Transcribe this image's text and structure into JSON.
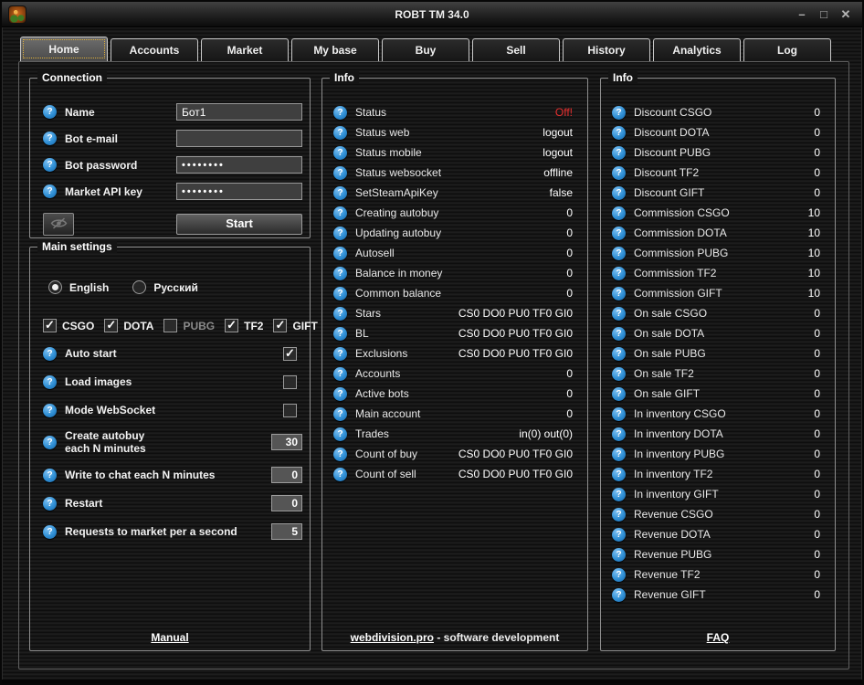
{
  "window": {
    "title": "ROBT TM 34.0",
    "controls": {
      "minimize": "–",
      "maximize": "□",
      "close": "✕"
    }
  },
  "tabs": [
    {
      "label": "Home",
      "active": true
    },
    {
      "label": "Accounts",
      "active": false
    },
    {
      "label": "Market",
      "active": false
    },
    {
      "label": "My base",
      "active": false
    },
    {
      "label": "Buy",
      "active": false
    },
    {
      "label": "Sell",
      "active": false
    },
    {
      "label": "History",
      "active": false
    },
    {
      "label": "Analytics",
      "active": false
    },
    {
      "label": "Log",
      "active": false
    }
  ],
  "connection": {
    "title": "Connection",
    "fields": [
      {
        "label": "Name",
        "value": "Бот1",
        "type": "text"
      },
      {
        "label": "Bot e-mail",
        "value": "",
        "type": "text"
      },
      {
        "label": "Bot password",
        "value": "••••••••",
        "type": "password"
      },
      {
        "label": "Market API key",
        "value": "••••••••",
        "type": "password"
      }
    ],
    "show_password_icon": "eye-off-icon",
    "start_button": "Start"
  },
  "settings": {
    "title": "Main settings",
    "languages": [
      {
        "label": "English",
        "selected": true
      },
      {
        "label": "Русский",
        "selected": false
      }
    ],
    "games": [
      {
        "label": "CSGO",
        "checked": true
      },
      {
        "label": "DOTA",
        "checked": true
      },
      {
        "label": "PUBG",
        "checked": false
      },
      {
        "label": "TF2",
        "checked": true
      },
      {
        "label": "GIFT",
        "checked": true
      }
    ],
    "toggles": [
      {
        "label": "Auto start",
        "checked": true
      },
      {
        "label": "Load images",
        "checked": false
      },
      {
        "label": "Mode WebSocket",
        "checked": false
      }
    ],
    "numbers": [
      {
        "label": "Create autobuy each N minutes",
        "lines": [
          "Create autobuy",
          "each N minutes"
        ],
        "value": "30"
      },
      {
        "label": "Write to chat each N minutes",
        "value": "0"
      },
      {
        "label": "Restart",
        "value": "0"
      },
      {
        "label": "Requests to market per a second",
        "value": "5"
      }
    ]
  },
  "info_center": {
    "title": "Info",
    "rows": [
      {
        "label": "Status",
        "value": "Off!",
        "highlight": "red"
      },
      {
        "label": "Status web",
        "value": "logout"
      },
      {
        "label": "Status mobile",
        "value": "logout"
      },
      {
        "label": "Status websocket",
        "value": "offline"
      },
      {
        "label": "SetSteamApiKey",
        "value": "false"
      },
      {
        "label": "Creating autobuy",
        "value": "0"
      },
      {
        "label": "Updating autobuy",
        "value": "0"
      },
      {
        "label": "Autosell",
        "value": "0"
      },
      {
        "label": "Balance in money",
        "value": "0"
      },
      {
        "label": "Common balance",
        "value": "0"
      },
      {
        "label": "Stars",
        "value": "CS0 DO0 PU0 TF0 GI0"
      },
      {
        "label": "BL",
        "value": "CS0 DO0 PU0 TF0 GI0"
      },
      {
        "label": "Exclusions",
        "value": "CS0 DO0 PU0 TF0 GI0"
      },
      {
        "label": "Accounts",
        "value": "0"
      },
      {
        "label": "Active bots",
        "value": "0"
      },
      {
        "label": "Main account",
        "value": "0"
      },
      {
        "label": "Trades",
        "value": "in(0) out(0)"
      },
      {
        "label": "Count of buy",
        "value": "CS0 DO0 PU0 TF0 GI0"
      },
      {
        "label": "Count of sell",
        "value": "CS0 DO0 PU0 TF0 GI0"
      }
    ]
  },
  "info_right": {
    "title": "Info",
    "rows": [
      {
        "label": "Discount CSGO",
        "value": "0"
      },
      {
        "label": "Discount DOTA",
        "value": "0"
      },
      {
        "label": "Discount PUBG",
        "value": "0"
      },
      {
        "label": "Discount TF2",
        "value": "0"
      },
      {
        "label": "Discount GIFT",
        "value": "0"
      },
      {
        "label": "Commission CSGO",
        "value": "10"
      },
      {
        "label": "Commission DOTA",
        "value": "10"
      },
      {
        "label": "Commission PUBG",
        "value": "10"
      },
      {
        "label": "Commission TF2",
        "value": "10"
      },
      {
        "label": "Commission GIFT",
        "value": "10"
      },
      {
        "label": "On sale CSGO",
        "value": "0"
      },
      {
        "label": "On sale DOTA",
        "value": "0"
      },
      {
        "label": "On sale PUBG",
        "value": "0"
      },
      {
        "label": "On sale TF2",
        "value": "0"
      },
      {
        "label": "On sale GIFT",
        "value": "0"
      },
      {
        "label": "In inventory CSGO",
        "value": "0"
      },
      {
        "label": "In inventory DOTA",
        "value": "0"
      },
      {
        "label": "In inventory PUBG",
        "value": "0"
      },
      {
        "label": "In inventory TF2",
        "value": "0"
      },
      {
        "label": "In inventory GIFT",
        "value": "0"
      },
      {
        "label": "Revenue CSGO",
        "value": "0"
      },
      {
        "label": "Revenue DOTA",
        "value": "0"
      },
      {
        "label": "Revenue PUBG",
        "value": "0"
      },
      {
        "label": "Revenue TF2",
        "value": "0"
      },
      {
        "label": "Revenue GIFT",
        "value": "0"
      }
    ]
  },
  "footer": {
    "manual": "Manual",
    "site_link": "webdivision.pro",
    "site_suffix": " - software development",
    "faq": "FAQ"
  },
  "colors": {
    "accent_blue": "#2f8fd5",
    "status_off_red": "#e83030",
    "focus_dotted": "#dcae3c"
  }
}
